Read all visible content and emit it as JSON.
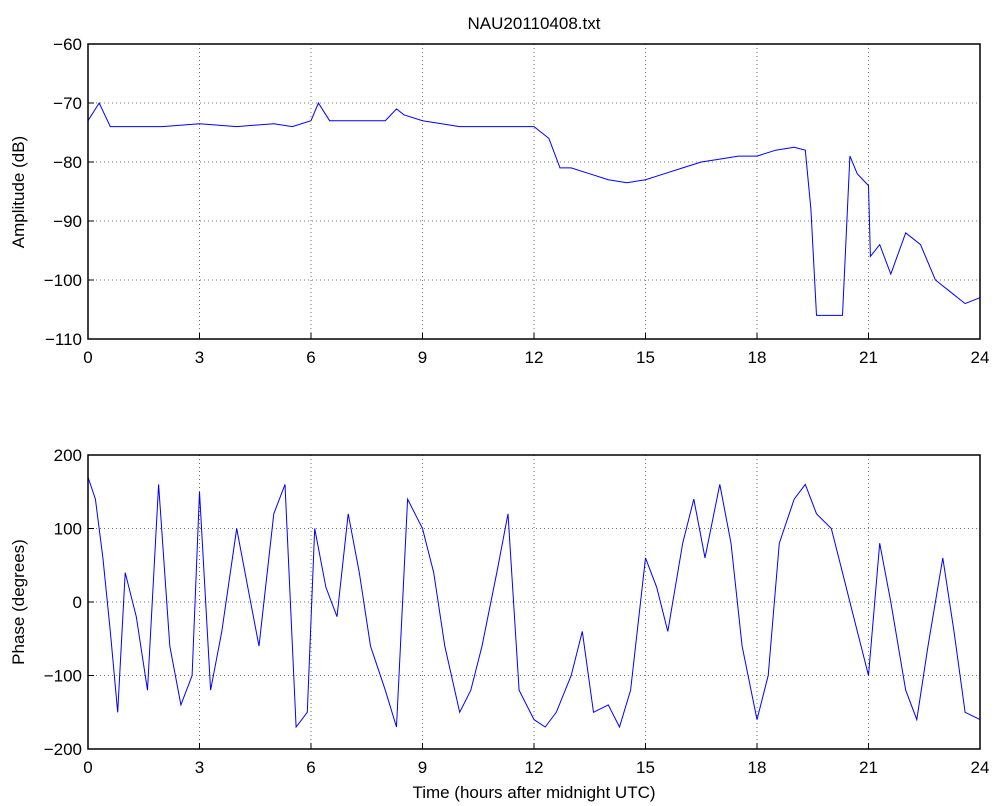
{
  "chart_data": [
    {
      "type": "line",
      "title": "NAU20110408.txt",
      "xlabel": "",
      "ylabel": "Amplitude (dB)",
      "xlim": [
        0,
        24
      ],
      "ylim": [
        -110,
        -60
      ],
      "xticks": [
        "0",
        "3",
        "6",
        "9",
        "12",
        "15",
        "18",
        "21",
        "24"
      ],
      "yticks": [
        "−60",
        "−70",
        "−80",
        "−90",
        "−100",
        "−110"
      ],
      "grid": true,
      "series": [
        {
          "color": "#0000ff",
          "x": [
            0,
            0.3,
            0.6,
            1,
            2,
            3,
            4,
            5,
            5.5,
            6,
            6.2,
            6.5,
            7,
            8,
            8.3,
            8.5,
            9,
            10,
            11,
            12,
            12.4,
            12.7,
            13,
            13.5,
            14,
            14.5,
            15,
            15.5,
            16,
            16.5,
            17,
            17.5,
            18,
            18.5,
            19,
            19.3,
            19.45,
            19.6,
            20,
            20.3,
            20.5,
            20.7,
            21,
            21.05,
            21.3,
            21.6,
            22,
            22.4,
            22.8,
            23.2,
            23.6,
            24
          ],
          "y": [
            -73,
            -70,
            -74,
            -74,
            -74,
            -73.5,
            -74,
            -73.5,
            -74,
            -73,
            -70,
            -73,
            -73,
            -73,
            -71,
            -72,
            -73,
            -74,
            -74,
            -74,
            -76,
            -81,
            -81,
            -82,
            -83,
            -83.5,
            -83,
            -82,
            -81,
            -80,
            -79.5,
            -79,
            -79,
            -78,
            -77.5,
            -78,
            -88,
            -106,
            -106,
            -106,
            -79,
            -82,
            -84,
            -96,
            -94,
            -99,
            -92,
            -94,
            -100,
            -102,
            -104,
            -103
          ]
        }
      ]
    },
    {
      "type": "line",
      "title": "",
      "xlabel": "Time (hours after midnight UTC)",
      "ylabel": "Phase (degrees)",
      "xlim": [
        0,
        24
      ],
      "ylim": [
        -200,
        200
      ],
      "xticks": [
        "0",
        "3",
        "6",
        "9",
        "12",
        "15",
        "18",
        "21",
        "24"
      ],
      "yticks": [
        "200",
        "100",
        "0",
        "−100",
        "−200"
      ],
      "grid": true,
      "series": [
        {
          "color": "#0000ff",
          "x": [
            0,
            0.2,
            0.4,
            0.6,
            0.8,
            1,
            1.3,
            1.6,
            1.9,
            2.2,
            2.5,
            2.8,
            3,
            3.3,
            3.6,
            4,
            4.3,
            4.6,
            5,
            5.3,
            5.6,
            5.9,
            6.1,
            6.4,
            6.7,
            7,
            7.3,
            7.6,
            8,
            8.3,
            8.6,
            9,
            9.3,
            9.6,
            10,
            10.3,
            10.6,
            11,
            11.3,
            11.6,
            12,
            12.3,
            12.6,
            13,
            13.3,
            13.6,
            14,
            14.3,
            14.6,
            15,
            15.3,
            15.6,
            16,
            16.3,
            16.6,
            17,
            17.3,
            17.6,
            18,
            18.3,
            18.6,
            19,
            19.3,
            19.6,
            20,
            20.3,
            20.6,
            21,
            21.3,
            21.6,
            22,
            22.3,
            22.6,
            23,
            23.3,
            23.6,
            24
          ],
          "y": [
            170,
            140,
            60,
            -40,
            -150,
            40,
            -20,
            -120,
            160,
            -60,
            -140,
            -100,
            150,
            -120,
            -40,
            100,
            20,
            -60,
            120,
            160,
            -170,
            -150,
            100,
            20,
            -20,
            120,
            40,
            -60,
            -120,
            -170,
            140,
            100,
            40,
            -60,
            -150,
            -120,
            -60,
            40,
            120,
            -120,
            -160,
            -170,
            -150,
            -100,
            -40,
            -150,
            -140,
            -170,
            -120,
            60,
            20,
            -40,
            80,
            140,
            60,
            160,
            80,
            -60,
            -160,
            -100,
            80,
            140,
            160,
            120,
            100,
            40,
            -20,
            -100,
            80,
            0,
            -120,
            -160,
            -60,
            60,
            -40,
            -150,
            -160
          ]
        }
      ]
    }
  ]
}
